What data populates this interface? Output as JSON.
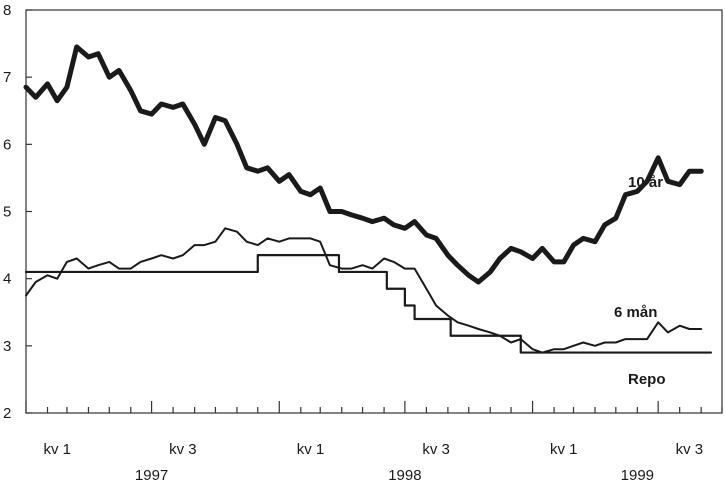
{
  "chart_data": {
    "type": "line",
    "title": "",
    "xlabel": "",
    "ylabel": "",
    "ylim": [
      2,
      8
    ],
    "yticks": [
      2,
      3,
      4,
      5,
      6,
      7,
      8
    ],
    "xlim": [
      "1997-01",
      "1999-10"
    ],
    "x_quarter_labels": [
      "kv 1",
      "kv 3",
      "kv 1",
      "kv 3",
      "kv 1",
      "kv 3"
    ],
    "x_year_labels": [
      "1997",
      "1998",
      "1999"
    ],
    "grid": false,
    "legend": "inline labels",
    "series": [
      {
        "name": "10 år",
        "style": "thick",
        "color": "#1a1a1a",
        "points": [
          [
            "1997-01-01",
            6.85
          ],
          [
            "1997-01-15",
            6.7
          ],
          [
            "1997-02-01",
            6.9
          ],
          [
            "1997-02-15",
            6.65
          ],
          [
            "1997-03-01",
            6.85
          ],
          [
            "1997-03-15",
            7.45
          ],
          [
            "1997-04-01",
            7.3
          ],
          [
            "1997-04-15",
            7.35
          ],
          [
            "1997-05-01",
            7.0
          ],
          [
            "1997-05-15",
            7.1
          ],
          [
            "1997-06-01",
            6.8
          ],
          [
            "1997-06-15",
            6.5
          ],
          [
            "1997-07-01",
            6.45
          ],
          [
            "1997-07-15",
            6.6
          ],
          [
            "1997-08-01",
            6.55
          ],
          [
            "1997-08-15",
            6.6
          ],
          [
            "1997-09-01",
            6.3
          ],
          [
            "1997-09-15",
            6.0
          ],
          [
            "1997-10-01",
            6.4
          ],
          [
            "1997-10-15",
            6.35
          ],
          [
            "1997-11-01",
            6.0
          ],
          [
            "1997-11-15",
            5.65
          ],
          [
            "1997-12-01",
            5.6
          ],
          [
            "1997-12-15",
            5.65
          ],
          [
            "1998-01-01",
            5.45
          ],
          [
            "1998-01-15",
            5.55
          ],
          [
            "1998-02-01",
            5.3
          ],
          [
            "1998-02-15",
            5.25
          ],
          [
            "1998-03-01",
            5.35
          ],
          [
            "1998-03-15",
            5.0
          ],
          [
            "1998-04-01",
            5.0
          ],
          [
            "1998-04-15",
            4.95
          ],
          [
            "1998-05-01",
            4.9
          ],
          [
            "1998-05-15",
            4.85
          ],
          [
            "1998-06-01",
            4.9
          ],
          [
            "1998-06-15",
            4.8
          ],
          [
            "1998-07-01",
            4.75
          ],
          [
            "1998-07-15",
            4.85
          ],
          [
            "1998-08-01",
            4.65
          ],
          [
            "1998-08-15",
            4.6
          ],
          [
            "1998-09-01",
            4.35
          ],
          [
            "1998-09-15",
            4.2
          ],
          [
            "1998-10-01",
            4.05
          ],
          [
            "1998-10-15",
            3.95
          ],
          [
            "1998-11-01",
            4.1
          ],
          [
            "1998-11-15",
            4.3
          ],
          [
            "1998-12-01",
            4.45
          ],
          [
            "1998-12-15",
            4.4
          ],
          [
            "1999-01-01",
            4.3
          ],
          [
            "1999-01-15",
            4.45
          ],
          [
            "1999-02-01",
            4.25
          ],
          [
            "1999-02-15",
            4.25
          ],
          [
            "1999-03-01",
            4.5
          ],
          [
            "1999-03-15",
            4.6
          ],
          [
            "1999-04-01",
            4.55
          ],
          [
            "1999-04-15",
            4.8
          ],
          [
            "1999-05-01",
            4.9
          ],
          [
            "1999-05-15",
            5.25
          ],
          [
            "1999-06-01",
            5.3
          ],
          [
            "1999-06-15",
            5.45
          ],
          [
            "1999-07-01",
            5.8
          ],
          [
            "1999-07-15",
            5.45
          ],
          [
            "1999-08-01",
            5.4
          ],
          [
            "1999-08-15",
            5.6
          ],
          [
            "1999-09-01",
            5.6
          ]
        ]
      },
      {
        "name": "6 mån",
        "style": "thin",
        "color": "#1a1a1a",
        "points": [
          [
            "1997-01-01",
            3.75
          ],
          [
            "1997-01-15",
            3.95
          ],
          [
            "1997-02-01",
            4.05
          ],
          [
            "1997-02-15",
            4.0
          ],
          [
            "1997-03-01",
            4.25
          ],
          [
            "1997-03-15",
            4.3
          ],
          [
            "1997-04-01",
            4.15
          ],
          [
            "1997-04-15",
            4.2
          ],
          [
            "1997-05-01",
            4.25
          ],
          [
            "1997-05-15",
            4.15
          ],
          [
            "1997-06-01",
            4.15
          ],
          [
            "1997-06-15",
            4.25
          ],
          [
            "1997-07-01",
            4.3
          ],
          [
            "1997-07-15",
            4.35
          ],
          [
            "1997-08-01",
            4.3
          ],
          [
            "1997-08-15",
            4.35
          ],
          [
            "1997-09-01",
            4.5
          ],
          [
            "1997-09-15",
            4.5
          ],
          [
            "1997-10-01",
            4.55
          ],
          [
            "1997-10-15",
            4.75
          ],
          [
            "1997-11-01",
            4.7
          ],
          [
            "1997-11-15",
            4.55
          ],
          [
            "1997-12-01",
            4.5
          ],
          [
            "1997-12-15",
            4.6
          ],
          [
            "1998-01-01",
            4.55
          ],
          [
            "1998-01-15",
            4.6
          ],
          [
            "1998-02-01",
            4.6
          ],
          [
            "1998-02-15",
            4.6
          ],
          [
            "1998-03-01",
            4.55
          ],
          [
            "1998-03-15",
            4.2
          ],
          [
            "1998-04-01",
            4.15
          ],
          [
            "1998-04-15",
            4.15
          ],
          [
            "1998-05-01",
            4.2
          ],
          [
            "1998-05-15",
            4.15
          ],
          [
            "1998-06-01",
            4.3
          ],
          [
            "1998-06-15",
            4.25
          ],
          [
            "1998-07-01",
            4.15
          ],
          [
            "1998-07-15",
            4.15
          ],
          [
            "1998-08-01",
            3.85
          ],
          [
            "1998-08-15",
            3.6
          ],
          [
            "1998-09-01",
            3.45
          ],
          [
            "1998-09-15",
            3.35
          ],
          [
            "1998-10-01",
            3.3
          ],
          [
            "1998-10-15",
            3.25
          ],
          [
            "1998-11-01",
            3.2
          ],
          [
            "1998-11-15",
            3.15
          ],
          [
            "1998-12-01",
            3.05
          ],
          [
            "1998-12-15",
            3.1
          ],
          [
            "1999-01-01",
            2.95
          ],
          [
            "1999-01-15",
            2.9
          ],
          [
            "1999-02-01",
            2.95
          ],
          [
            "1999-02-15",
            2.95
          ],
          [
            "1999-03-01",
            3.0
          ],
          [
            "1999-03-15",
            3.05
          ],
          [
            "1999-04-01",
            3.0
          ],
          [
            "1999-04-15",
            3.05
          ],
          [
            "1999-05-01",
            3.05
          ],
          [
            "1999-05-15",
            3.1
          ],
          [
            "1999-06-01",
            3.1
          ],
          [
            "1999-06-15",
            3.1
          ],
          [
            "1999-07-01",
            3.35
          ],
          [
            "1999-07-15",
            3.2
          ],
          [
            "1999-08-01",
            3.3
          ],
          [
            "1999-08-15",
            3.25
          ],
          [
            "1999-09-01",
            3.25
          ]
        ]
      },
      {
        "name": "Repo",
        "style": "step",
        "color": "#1a1a1a",
        "points": [
          [
            "1997-01-01",
            4.1
          ],
          [
            "1997-12-01",
            4.35
          ],
          [
            "1998-03-28",
            4.1
          ],
          [
            "1998-06-05",
            3.85
          ],
          [
            "1998-07-01",
            3.6
          ],
          [
            "1998-07-15",
            3.4
          ],
          [
            "1998-09-05",
            3.15
          ],
          [
            "1998-11-15",
            3.15
          ],
          [
            "1998-12-15",
            2.9
          ],
          [
            "1999-09-15",
            2.9
          ]
        ]
      }
    ]
  }
}
